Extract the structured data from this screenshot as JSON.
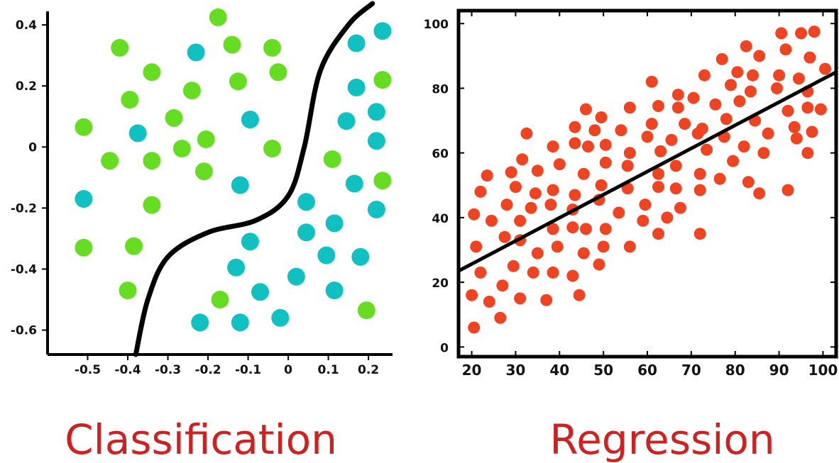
{
  "colors": {
    "class_a": "#66dd22",
    "class_b": "#11c1c1",
    "points": "#ee4422",
    "line": "#000000",
    "title": "#cc2222"
  },
  "chart_data": [
    {
      "type": "scatter",
      "title": "Classification",
      "xlabel": "",
      "ylabel": "",
      "xlim": [
        -0.6,
        0.26
      ],
      "ylim": [
        -0.68,
        0.47
      ],
      "x_ticks": [
        -0.5,
        -0.4,
        -0.3,
        -0.2,
        -0.1,
        0,
        0.1,
        0.2
      ],
      "x_tick_labels": [
        "-0.5",
        "-0.4",
        "-0.3",
        "-0.2",
        "-0.1",
        "0",
        "0.1",
        "0.2"
      ],
      "y_ticks": [
        0.4,
        0.2,
        0,
        -0.2,
        -0.4,
        -0.6
      ],
      "y_tick_labels": [
        "0.4",
        "0.2",
        "0",
        "-0.2",
        "-0.4",
        "-0.6"
      ],
      "grid": false,
      "series": [
        {
          "color": "#66dd22",
          "points": [
            [
              -0.175,
              0.425
            ],
            [
              -0.42,
              0.325
            ],
            [
              -0.14,
              0.335
            ],
            [
              -0.04,
              0.325
            ],
            [
              -0.34,
              0.245
            ],
            [
              -0.025,
              0.245
            ],
            [
              -0.24,
              0.185
            ],
            [
              -0.125,
              0.215
            ],
            [
              -0.395,
              0.155
            ],
            [
              -0.51,
              0.065
            ],
            [
              -0.285,
              0.095
            ],
            [
              -0.205,
              0.025
            ],
            [
              -0.265,
              -0.005
            ],
            [
              -0.04,
              -0.005
            ],
            [
              -0.445,
              -0.045
            ],
            [
              -0.34,
              -0.045
            ],
            [
              -0.21,
              -0.08
            ],
            [
              -0.34,
              -0.19
            ],
            [
              -0.51,
              -0.33
            ],
            [
              -0.385,
              -0.325
            ],
            [
              -0.4,
              -0.47
            ],
            [
              -0.17,
              -0.5
            ],
            [
              0.11,
              -0.04
            ],
            [
              0.235,
              -0.11
            ],
            [
              0.235,
              0.22
            ],
            [
              0.195,
              -0.535
            ]
          ]
        },
        {
          "color": "#11c1c1",
          "points": [
            [
              -0.23,
              0.31
            ],
            [
              0.17,
              0.34
            ],
            [
              0.235,
              0.38
            ],
            [
              0.17,
              0.195
            ],
            [
              0.22,
              0.115
            ],
            [
              0.145,
              0.085
            ],
            [
              -0.375,
              0.045
            ],
            [
              -0.095,
              0.09
            ],
            [
              0.22,
              0.02
            ],
            [
              -0.12,
              -0.125
            ],
            [
              0.165,
              -0.12
            ],
            [
              -0.51,
              -0.17
            ],
            [
              0.045,
              -0.18
            ],
            [
              0.22,
              -0.205
            ],
            [
              0.115,
              -0.25
            ],
            [
              0.045,
              -0.28
            ],
            [
              -0.095,
              -0.31
            ],
            [
              0.095,
              -0.355
            ],
            [
              0.18,
              -0.36
            ],
            [
              -0.13,
              -0.395
            ],
            [
              0.02,
              -0.425
            ],
            [
              -0.07,
              -0.475
            ],
            [
              0.115,
              -0.47
            ],
            [
              -0.22,
              -0.575
            ],
            [
              -0.12,
              -0.575
            ],
            [
              -0.02,
              -0.56
            ]
          ]
        }
      ],
      "decision_boundary": [
        [
          -0.38,
          -0.68
        ],
        [
          -0.35,
          -0.5
        ],
        [
          -0.3,
          -0.36
        ],
        [
          -0.2,
          -0.28
        ],
        [
          -0.08,
          -0.24
        ],
        [
          0.0,
          -0.16
        ],
        [
          0.04,
          0.0
        ],
        [
          0.08,
          0.25
        ],
        [
          0.15,
          0.4
        ],
        [
          0.21,
          0.47
        ]
      ]
    },
    {
      "type": "scatter",
      "title": "Regression",
      "xlabel": "",
      "ylabel": "",
      "xlim": [
        17,
        103
      ],
      "ylim": [
        -3,
        104
      ],
      "x_ticks": [
        20,
        30,
        40,
        50,
        60,
        70,
        80,
        90,
        100
      ],
      "x_tick_labels": [
        "20",
        "30",
        "40",
        "50",
        "60",
        "70",
        "80",
        "90",
        "100"
      ],
      "y_ticks": [
        0,
        20,
        40,
        60,
        80,
        100
      ],
      "y_tick_labels": [
        "0",
        "20",
        "40",
        "60",
        "80",
        "100"
      ],
      "grid": false,
      "points": [
        [
          20,
          16
        ],
        [
          20.5,
          6
        ],
        [
          20.5,
          41
        ],
        [
          21,
          31
        ],
        [
          22,
          23
        ],
        [
          22,
          48
        ],
        [
          23.5,
          53
        ],
        [
          24,
          14
        ],
        [
          24.5,
          39
        ],
        [
          26.5,
          9
        ],
        [
          27,
          19
        ],
        [
          27.5,
          34
        ],
        [
          28,
          44
        ],
        [
          29,
          54
        ],
        [
          29.5,
          25
        ],
        [
          30,
          49.5
        ],
        [
          31,
          15
        ],
        [
          31,
          33
        ],
        [
          31,
          39
        ],
        [
          31.5,
          58
        ],
        [
          32.5,
          66
        ],
        [
          33.5,
          43
        ],
        [
          34,
          23
        ],
        [
          34.5,
          47.5
        ],
        [
          35,
          29
        ],
        [
          35,
          54.5
        ],
        [
          37,
          14.5
        ],
        [
          38,
          44
        ],
        [
          38.5,
          23
        ],
        [
          38.5,
          36.5
        ],
        [
          38.5,
          48.5
        ],
        [
          38.5,
          62
        ],
        [
          39.5,
          31
        ],
        [
          40,
          56.5
        ],
        [
          43,
          22
        ],
        [
          43,
          37
        ],
        [
          43,
          42.5
        ],
        [
          43.5,
          47
        ],
        [
          43.5,
          63
        ],
        [
          43.5,
          68
        ],
        [
          44.5,
          16
        ],
        [
          45.5,
          29
        ],
        [
          45.5,
          53.5
        ],
        [
          46,
          36.5
        ],
        [
          46,
          73.5
        ],
        [
          46.5,
          62
        ],
        [
          48,
          67
        ],
        [
          49,
          25.5
        ],
        [
          49,
          45.5
        ],
        [
          49.5,
          50
        ],
        [
          49.5,
          71
        ],
        [
          50,
          31
        ],
        [
          50.5,
          36.5
        ],
        [
          50.5,
          57
        ],
        [
          50.5,
          62.5
        ],
        [
          53.5,
          41.5
        ],
        [
          54,
          67
        ],
        [
          55.5,
          49
        ],
        [
          55.5,
          56
        ],
        [
          56,
          31
        ],
        [
          56,
          60
        ],
        [
          56,
          74
        ],
        [
          59,
          39
        ],
        [
          59.5,
          44
        ],
        [
          60,
          65
        ],
        [
          61,
          69
        ],
        [
          61,
          82
        ],
        [
          62.5,
          35
        ],
        [
          62.5,
          49.5
        ],
        [
          62.5,
          53.5
        ],
        [
          62.5,
          74.5
        ],
        [
          63,
          60.5
        ],
        [
          64.5,
          40
        ],
        [
          65.5,
          64
        ],
        [
          66.5,
          49
        ],
        [
          66.5,
          56
        ],
        [
          67,
          74
        ],
        [
          67,
          78
        ],
        [
          67.5,
          43
        ],
        [
          68.5,
          69
        ],
        [
          70.5,
          77
        ],
        [
          71.5,
          66
        ],
        [
          72,
          35
        ],
        [
          72,
          48.5
        ],
        [
          72,
          53.5
        ],
        [
          72.5,
          67.5
        ],
        [
          73,
          84
        ],
        [
          73.5,
          61
        ],
        [
          75.5,
          75
        ],
        [
          76.5,
          52
        ],
        [
          77,
          89
        ],
        [
          77.5,
          65
        ],
        [
          78,
          70.5
        ],
        [
          79,
          81
        ],
        [
          79.5,
          57.5
        ],
        [
          80.5,
          85
        ],
        [
          81,
          76
        ],
        [
          82,
          62
        ],
        [
          82.5,
          93
        ],
        [
          83,
          51
        ],
        [
          83.5,
          79
        ],
        [
          84,
          84
        ],
        [
          84.5,
          70
        ],
        [
          85.5,
          47.5
        ],
        [
          85.5,
          90
        ],
        [
          86.5,
          60
        ],
        [
          87.5,
          66
        ],
        [
          89.5,
          80
        ],
        [
          90,
          84
        ],
        [
          90.5,
          97
        ],
        [
          91.5,
          92
        ],
        [
          92,
          73
        ],
        [
          92,
          48.5
        ],
        [
          93.5,
          68
        ],
        [
          94,
          64.5
        ],
        [
          94.5,
          83
        ],
        [
          95,
          97
        ],
        [
          96.5,
          60
        ],
        [
          96.5,
          74
        ],
        [
          96.5,
          79
        ],
        [
          97,
          89.5
        ],
        [
          97.5,
          66.5
        ],
        [
          98,
          97.5
        ],
        [
          99.5,
          73.5
        ],
        [
          100.5,
          86
        ]
      ],
      "fit_line": [
        [
          17,
          23.5
        ],
        [
          103,
          85
        ]
      ]
    }
  ]
}
